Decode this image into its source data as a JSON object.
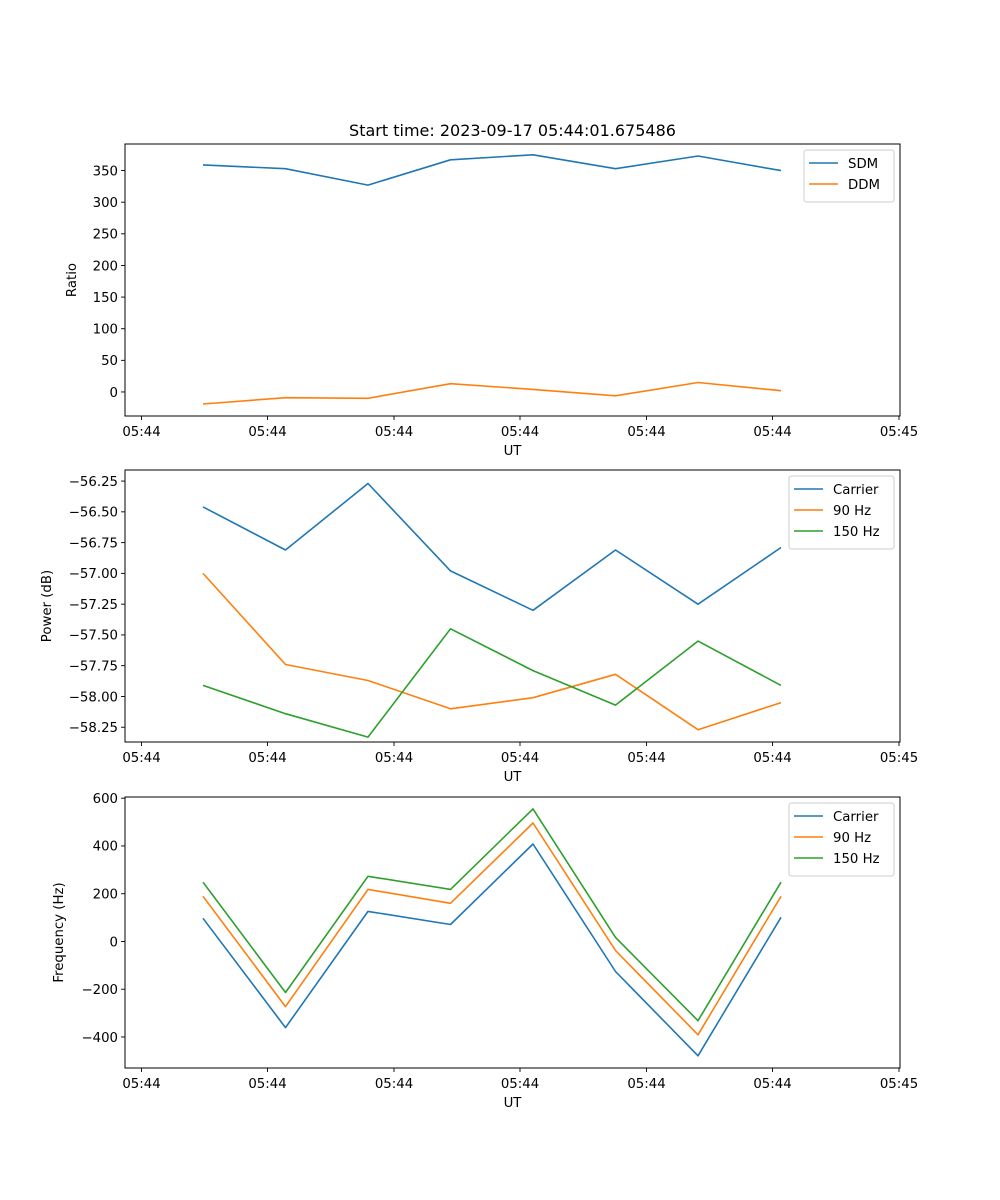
{
  "figure": {
    "title": "Start time: 2023-09-17 05:44:01.675486"
  },
  "chart_data": [
    {
      "type": "line",
      "title": "Start time: 2023-09-17 05:44:01.675486",
      "xlabel": "UT",
      "ylabel": "Ratio",
      "x": [
        1,
        2,
        3,
        4,
        5,
        6,
        7,
        8
      ],
      "xlim": [
        0.25,
        8.5
      ],
      "xticks": [
        0.2,
        1.7,
        3.2,
        4.7,
        6.2,
        7.7,
        9.2
      ],
      "xtick_labels": [
        "05:44",
        "05:44",
        "05:44",
        "05:44",
        "05:44",
        "05:44",
        "05:45"
      ],
      "ylim": [
        -38,
        392
      ],
      "yticks": [
        0,
        50,
        100,
        150,
        200,
        250,
        300,
        350
      ],
      "ytick_labels": [
        "0",
        "50",
        "100",
        "150",
        "200",
        "250",
        "300",
        "350"
      ],
      "grid": false,
      "legend_position": "top-right",
      "series": [
        {
          "name": "SDM",
          "color": "#1f77b4",
          "values": [
            359,
            353,
            327,
            367,
            375,
            353,
            373,
            350
          ]
        },
        {
          "name": "DDM",
          "color": "#ff7f0e",
          "values": [
            -19,
            -9,
            -10,
            13,
            4,
            -6,
            15,
            2
          ]
        }
      ]
    },
    {
      "type": "line",
      "title": "",
      "xlabel": "UT",
      "ylabel": "Power (dB)",
      "x": [
        1,
        2,
        3,
        4,
        5,
        6,
        7,
        8
      ],
      "xlim": [
        0.25,
        8.5
      ],
      "xtick_labels": [
        "05:44",
        "05:44",
        "05:44",
        "05:44",
        "05:44",
        "05:44",
        "05:45"
      ],
      "ylim": [
        -58.37,
        -56.16
      ],
      "yticks": [
        -56.25,
        -56.5,
        -56.75,
        -57.0,
        -57.25,
        -57.5,
        -57.75,
        -58.0,
        -58.25
      ],
      "ytick_labels": [
        "−56.25",
        "−56.50",
        "−56.75",
        "−57.00",
        "−57.25",
        "−57.50",
        "−57.75",
        "−58.00",
        "−58.25"
      ],
      "grid": false,
      "legend_position": "top-right",
      "series": [
        {
          "name": "Carrier",
          "color": "#1f77b4",
          "values": [
            -56.46,
            -56.81,
            -56.27,
            -56.98,
            -57.3,
            -56.81,
            -57.25,
            -56.79
          ]
        },
        {
          "name": "90 Hz",
          "color": "#ff7f0e",
          "values": [
            -57.0,
            -57.74,
            -57.87,
            -58.1,
            -58.01,
            -57.82,
            -58.27,
            -58.05
          ]
        },
        {
          "name": "150 Hz",
          "color": "#2ca02c",
          "values": [
            -57.91,
            -58.14,
            -58.33,
            -57.45,
            -57.79,
            -58.07,
            -57.55,
            -57.91
          ]
        }
      ]
    },
    {
      "type": "line",
      "title": "",
      "xlabel": "UT",
      "ylabel": "Frequency (Hz)",
      "x": [
        1,
        2,
        3,
        4,
        5,
        6,
        7,
        8
      ],
      "xlim": [
        0.25,
        8.5
      ],
      "xtick_labels": [
        "05:44",
        "05:44",
        "05:44",
        "05:44",
        "05:44",
        "05:44",
        "05:45"
      ],
      "ylim": [
        -530,
        605
      ],
      "yticks": [
        -400,
        -200,
        0,
        200,
        400,
        600
      ],
      "ytick_labels": [
        "−400",
        "−200",
        "0",
        "200",
        "400",
        "600"
      ],
      "grid": false,
      "legend_position": "top-right",
      "series": [
        {
          "name": "Carrier",
          "color": "#1f77b4",
          "values": [
            97,
            -361,
            126,
            71,
            408,
            -126,
            -479,
            101
          ]
        },
        {
          "name": "90 Hz",
          "color": "#ff7f0e",
          "values": [
            189,
            -273,
            218,
            160,
            496,
            -38,
            -391,
            189
          ]
        },
        {
          "name": "150 Hz",
          "color": "#2ca02c",
          "values": [
            248,
            -214,
            273,
            218,
            555,
            17,
            -332,
            248
          ]
        }
      ]
    }
  ]
}
